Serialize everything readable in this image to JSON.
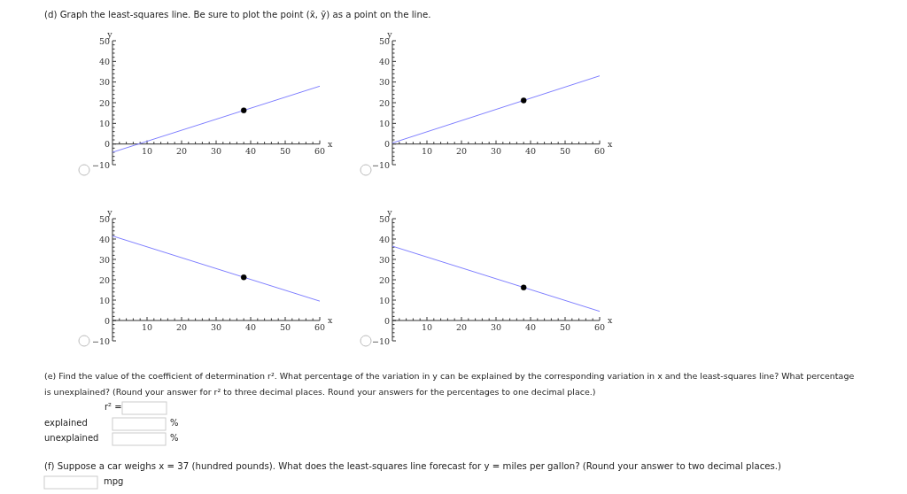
{
  "chart_data": [
    {
      "type": "other",
      "title": "(d) Graph the least-squares line. Be sure to plot the point (x̄, ȳ) as a point on the line."
    },
    {
      "type": "line",
      "xlabel": "x",
      "ylabel": "y",
      "xlim": [
        0,
        60
      ],
      "ylim": [
        -10,
        50
      ],
      "grid": false,
      "line_style": "solid",
      "xticks": [
        {
          "value": 2,
          "label": null
        },
        {
          "value": 4,
          "label": null
        },
        {
          "value": 6,
          "label": null
        },
        {
          "value": 8,
          "label": null
        },
        10,
        {
          "value": 12,
          "label": null
        },
        {
          "value": 14,
          "label": null
        },
        {
          "value": 16,
          "label": null
        },
        {
          "value": 18,
          "label": null
        },
        20,
        {
          "value": 22,
          "label": null
        },
        {
          "value": 24,
          "label": null
        },
        {
          "value": 26,
          "label": null
        },
        {
          "value": 28,
          "label": null
        },
        30,
        {
          "value": 32,
          "label": null
        },
        {
          "value": 34,
          "label": null
        },
        {
          "value": 36,
          "label": null
        },
        {
          "value": 38,
          "label": null
        },
        40,
        {
          "value": 42,
          "label": null
        },
        {
          "value": 44,
          "label": null
        },
        {
          "value": 46,
          "label": null
        },
        {
          "value": 48,
          "label": null
        },
        50,
        {
          "value": 52,
          "label": null
        },
        {
          "value": 54,
          "label": null
        },
        {
          "value": 56,
          "label": null
        },
        {
          "value": 58,
          "label": null
        },
        60
      ],
      "yticks": [
        {
          "value": -10,
          "label": "−10"
        },
        {
          "value": -8,
          "label": null
        },
        {
          "value": -6,
          "label": null
        },
        {
          "value": -4,
          "label": null
        },
        {
          "value": -2,
          "label": null
        },
        0,
        {
          "value": 2,
          "label": null
        },
        {
          "value": 4,
          "label": null
        },
        {
          "value": 6,
          "label": null
        },
        {
          "value": 8,
          "label": null
        },
        10,
        {
          "value": 12,
          "label": null
        },
        {
          "value": 14,
          "label": null
        },
        {
          "value": 16,
          "label": null
        },
        {
          "value": 18,
          "label": null
        },
        20,
        {
          "value": 22,
          "label": null
        },
        {
          "value": 24,
          "label": null
        },
        {
          "value": 26,
          "label": null
        },
        {
          "value": 28,
          "label": null
        },
        30,
        {
          "value": 32,
          "label": null
        },
        {
          "value": 34,
          "label": null
        },
        {
          "value": 36,
          "label": null
        },
        {
          "value": 38,
          "label": null
        },
        40,
        {
          "value": 42,
          "label": null
        },
        {
          "value": 44,
          "label": null
        },
        {
          "value": 46,
          "label": null
        },
        {
          "value": 48,
          "label": null
        },
        50
      ],
      "series": [
        {
          "type": "line",
          "color": "#8080ff",
          "x": [
            0,
            60
          ],
          "values": [
            -4,
            28
          ]
        },
        {
          "type": "scatter",
          "marker": "circle",
          "color": "#000000",
          "x": [
            38
          ],
          "values": [
            16.3
          ]
        }
      ]
    },
    {
      "type": "line",
      "xlabel": "x",
      "ylabel": "y",
      "xlim": [
        0,
        60
      ],
      "ylim": [
        -10,
        50
      ],
      "grid": false,
      "line_style": "solid",
      "xticks": [
        {
          "value": 2,
          "label": null
        },
        {
          "value": 4,
          "label": null
        },
        {
          "value": 6,
          "label": null
        },
        {
          "value": 8,
          "label": null
        },
        10,
        {
          "value": 12,
          "label": null
        },
        {
          "value": 14,
          "label": null
        },
        {
          "value": 16,
          "label": null
        },
        {
          "value": 18,
          "label": null
        },
        20,
        {
          "value": 22,
          "label": null
        },
        {
          "value": 24,
          "label": null
        },
        {
          "value": 26,
          "label": null
        },
        {
          "value": 28,
          "label": null
        },
        30,
        {
          "value": 32,
          "label": null
        },
        {
          "value": 34,
          "label": null
        },
        {
          "value": 36,
          "label": null
        },
        {
          "value": 38,
          "label": null
        },
        40,
        {
          "value": 42,
          "label": null
        },
        {
          "value": 44,
          "label": null
        },
        {
          "value": 46,
          "label": null
        },
        {
          "value": 48,
          "label": null
        },
        50,
        {
          "value": 52,
          "label": null
        },
        {
          "value": 54,
          "label": null
        },
        {
          "value": 56,
          "label": null
        },
        {
          "value": 58,
          "label": null
        },
        60
      ],
      "yticks": [
        {
          "value": -10,
          "label": "−10"
        },
        {
          "value": -8,
          "label": null
        },
        {
          "value": -6,
          "label": null
        },
        {
          "value": -4,
          "label": null
        },
        {
          "value": -2,
          "label": null
        },
        0,
        {
          "value": 2,
          "label": null
        },
        {
          "value": 4,
          "label": null
        },
        {
          "value": 6,
          "label": null
        },
        {
          "value": 8,
          "label": null
        },
        10,
        {
          "value": 12,
          "label": null
        },
        {
          "value": 14,
          "label": null
        },
        {
          "value": 16,
          "label": null
        },
        {
          "value": 18,
          "label": null
        },
        20,
        {
          "value": 22,
          "label": null
        },
        {
          "value": 24,
          "label": null
        },
        {
          "value": 26,
          "label": null
        },
        {
          "value": 28,
          "label": null
        },
        30,
        {
          "value": 32,
          "label": null
        },
        {
          "value": 34,
          "label": null
        },
        {
          "value": 36,
          "label": null
        },
        {
          "value": 38,
          "label": null
        },
        40,
        {
          "value": 42,
          "label": null
        },
        {
          "value": 44,
          "label": null
        },
        {
          "value": 46,
          "label": null
        },
        {
          "value": 48,
          "label": null
        },
        50
      ],
      "series": [
        {
          "type": "line",
          "color": "#8080ff",
          "x": [
            0,
            60
          ],
          "values": [
            0.5,
            33
          ]
        },
        {
          "type": "scatter",
          "marker": "circle",
          "color": "#000000",
          "x": [
            38
          ],
          "values": [
            21.1
          ]
        }
      ]
    },
    {
      "type": "line",
      "xlabel": "x",
      "ylabel": "y",
      "xlim": [
        0,
        60
      ],
      "ylim": [
        -10,
        50
      ],
      "grid": false,
      "line_style": "solid",
      "xticks": [
        {
          "value": 2,
          "label": null
        },
        {
          "value": 4,
          "label": null
        },
        {
          "value": 6,
          "label": null
        },
        {
          "value": 8,
          "label": null
        },
        10,
        {
          "value": 12,
          "label": null
        },
        {
          "value": 14,
          "label": null
        },
        {
          "value": 16,
          "label": null
        },
        {
          "value": 18,
          "label": null
        },
        20,
        {
          "value": 22,
          "label": null
        },
        {
          "value": 24,
          "label": null
        },
        {
          "value": 26,
          "label": null
        },
        {
          "value": 28,
          "label": null
        },
        30,
        {
          "value": 32,
          "label": null
        },
        {
          "value": 34,
          "label": null
        },
        {
          "value": 36,
          "label": null
        },
        {
          "value": 38,
          "label": null
        },
        40,
        {
          "value": 42,
          "label": null
        },
        {
          "value": 44,
          "label": null
        },
        {
          "value": 46,
          "label": null
        },
        {
          "value": 48,
          "label": null
        },
        50,
        {
          "value": 52,
          "label": null
        },
        {
          "value": 54,
          "label": null
        },
        {
          "value": 56,
          "label": null
        },
        {
          "value": 58,
          "label": null
        },
        60
      ],
      "yticks": [
        {
          "value": -10,
          "label": "−10"
        },
        {
          "value": -8,
          "label": null
        },
        {
          "value": -6,
          "label": null
        },
        {
          "value": -4,
          "label": null
        },
        {
          "value": -2,
          "label": null
        },
        0,
        {
          "value": 2,
          "label": null
        },
        {
          "value": 4,
          "label": null
        },
        {
          "value": 6,
          "label": null
        },
        {
          "value": 8,
          "label": null
        },
        10,
        {
          "value": 12,
          "label": null
        },
        {
          "value": 14,
          "label": null
        },
        {
          "value": 16,
          "label": null
        },
        {
          "value": 18,
          "label": null
        },
        20,
        {
          "value": 22,
          "label": null
        },
        {
          "value": 24,
          "label": null
        },
        {
          "value": 26,
          "label": null
        },
        {
          "value": 28,
          "label": null
        },
        30,
        {
          "value": 32,
          "label": null
        },
        {
          "value": 34,
          "label": null
        },
        {
          "value": 36,
          "label": null
        },
        {
          "value": 38,
          "label": null
        },
        40,
        {
          "value": 42,
          "label": null
        },
        {
          "value": 44,
          "label": null
        },
        {
          "value": 46,
          "label": null
        },
        {
          "value": 48,
          "label": null
        },
        50
      ],
      "series": [
        {
          "type": "line",
          "color": "#8080ff",
          "x": [
            0,
            60
          ],
          "values": [
            41.5,
            9.5
          ]
        },
        {
          "type": "scatter",
          "marker": "circle",
          "color": "#000000",
          "x": [
            38
          ],
          "values": [
            21.2
          ]
        }
      ]
    },
    {
      "type": "line",
      "xlabel": "x",
      "ylabel": "y",
      "xlim": [
        0,
        60
      ],
      "ylim": [
        -10,
        50
      ],
      "grid": false,
      "line_style": "solid",
      "xticks": [
        {
          "value": 2,
          "label": null
        },
        {
          "value": 4,
          "label": null
        },
        {
          "value": 6,
          "label": null
        },
        {
          "value": 8,
          "label": null
        },
        10,
        {
          "value": 12,
          "label": null
        },
        {
          "value": 14,
          "label": null
        },
        {
          "value": 16,
          "label": null
        },
        {
          "value": 18,
          "label": null
        },
        20,
        {
          "value": 22,
          "label": null
        },
        {
          "value": 24,
          "label": null
        },
        {
          "value": 26,
          "label": null
        },
        {
          "value": 28,
          "label": null
        },
        30,
        {
          "value": 32,
          "label": null
        },
        {
          "value": 34,
          "label": null
        },
        {
          "value": 36,
          "label": null
        },
        {
          "value": 38,
          "label": null
        },
        40,
        {
          "value": 42,
          "label": null
        },
        {
          "value": 44,
          "label": null
        },
        {
          "value": 46,
          "label": null
        },
        {
          "value": 48,
          "label": null
        },
        50,
        {
          "value": 52,
          "label": null
        },
        {
          "value": 54,
          "label": null
        },
        {
          "value": 56,
          "label": null
        },
        {
          "value": 58,
          "label": null
        },
        60
      ],
      "yticks": [
        {
          "value": -10,
          "label": "−10"
        },
        {
          "value": -8,
          "label": null
        },
        {
          "value": -6,
          "label": null
        },
        {
          "value": -4,
          "label": null
        },
        {
          "value": -2,
          "label": null
        },
        0,
        {
          "value": 2,
          "label": null
        },
        {
          "value": 4,
          "label": null
        },
        {
          "value": 6,
          "label": null
        },
        {
          "value": 8,
          "label": null
        },
        10,
        {
          "value": 12,
          "label": null
        },
        {
          "value": 14,
          "label": null
        },
        {
          "value": 16,
          "label": null
        },
        {
          "value": 18,
          "label": null
        },
        20,
        {
          "value": 22,
          "label": null
        },
        {
          "value": 24,
          "label": null
        },
        {
          "value": 26,
          "label": null
        },
        {
          "value": 28,
          "label": null
        },
        30,
        {
          "value": 32,
          "label": null
        },
        {
          "value": 34,
          "label": null
        },
        {
          "value": 36,
          "label": null
        },
        {
          "value": 38,
          "label": null
        },
        40,
        {
          "value": 42,
          "label": null
        },
        {
          "value": 44,
          "label": null
        },
        {
          "value": 46,
          "label": null
        },
        {
          "value": 48,
          "label": null
        },
        50
      ],
      "series": [
        {
          "type": "line",
          "color": "#8080ff",
          "x": [
            0,
            60
          ],
          "values": [
            36.5,
            4.5
          ]
        },
        {
          "type": "scatter",
          "marker": "circle",
          "color": "#000000",
          "x": [
            38
          ],
          "values": [
            16.2
          ]
        }
      ]
    },
    {
      "type": "other",
      "annotations": [
        "(e) Find the value of the coefficient of determination r². What percentage of the variation in y can be explained by the corresponding variation in x and the least-squares line? What percentage",
        "is unexplained? (Round your answer for r² to three decimal places. Round your answers for the percentages to one decimal place.)",
        "r² =",
        "explained",
        "%",
        "unexplained",
        "%",
        "(f) Suppose a car weighs x = 37 (hundred pounds). What does the least-squares line forecast for y = miles per gallon? (Round your answer to two decimal places.)",
        "mpg"
      ]
    }
  ]
}
